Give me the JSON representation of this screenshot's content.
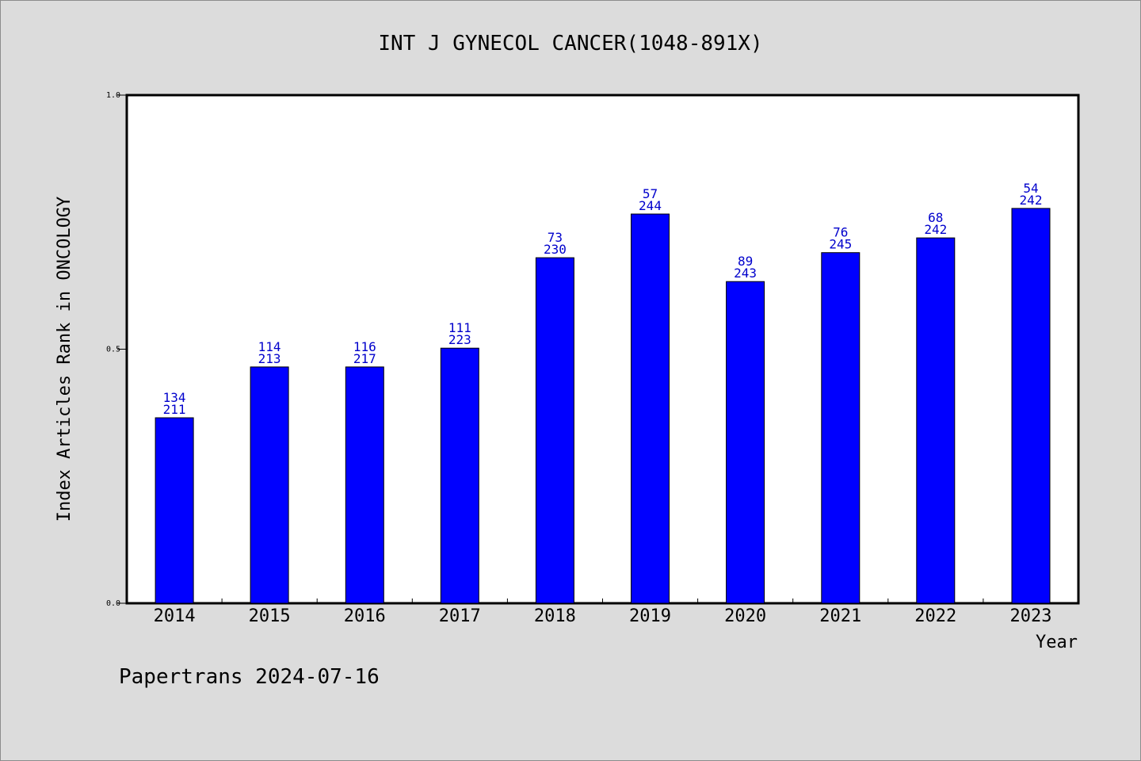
{
  "chart_data": {
    "type": "bar",
    "title": "INT J GYNECOL CANCER(1048-891X)",
    "xlabel": "Year",
    "ylabel": "Index Articles Rank in ONCOLOGY",
    "ylim": [
      0,
      1.0
    ],
    "yticks": [
      "0.0",
      "0.5",
      "1.0"
    ],
    "categories": [
      "2014",
      "2015",
      "2016",
      "2017",
      "2018",
      "2019",
      "2020",
      "2021",
      "2022",
      "2023"
    ],
    "values": [
      0.365,
      0.465,
      0.465,
      0.502,
      0.68,
      0.766,
      0.633,
      0.69,
      0.719,
      0.777
    ],
    "rank_labels": [
      "134",
      "114",
      "116",
      "111",
      "73",
      "57",
      "89",
      "76",
      "68",
      "54"
    ],
    "total_labels": [
      "211",
      "213",
      "217",
      "223",
      "230",
      "244",
      "243",
      "245",
      "242",
      "242"
    ],
    "bar_color": "#0000ff",
    "label_color": "#0000cc",
    "grid": false
  },
  "footer": {
    "text": "Papertrans 2024-07-16"
  }
}
